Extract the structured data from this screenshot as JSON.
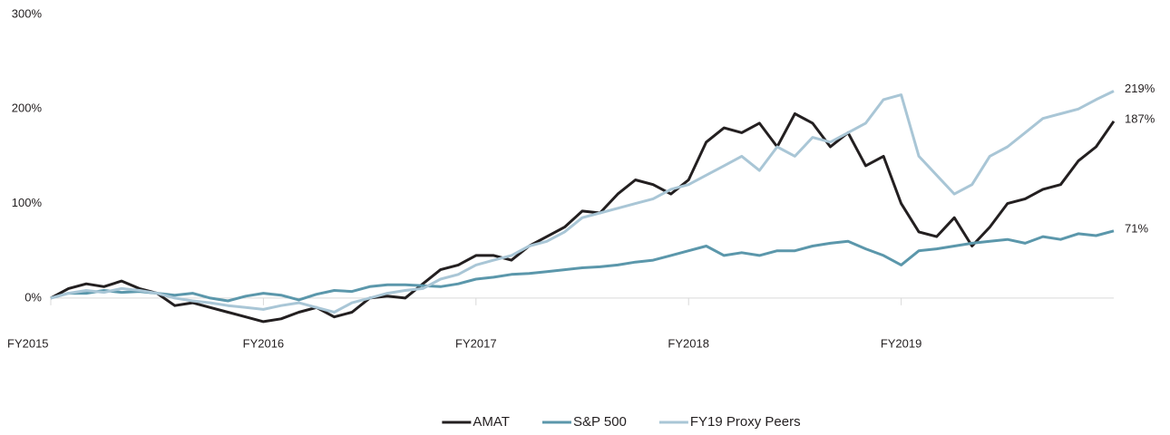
{
  "chart_data": {
    "type": "line",
    "x": [
      2015,
      2015.083,
      2015.167,
      2015.25,
      2015.333,
      2015.417,
      2015.5,
      2015.583,
      2015.667,
      2015.75,
      2015.833,
      2015.917,
      2016,
      2016.083,
      2016.167,
      2016.25,
      2016.333,
      2016.417,
      2016.5,
      2016.583,
      2016.667,
      2016.75,
      2016.833,
      2016.917,
      2017,
      2017.083,
      2017.167,
      2017.25,
      2017.333,
      2017.417,
      2017.5,
      2017.583,
      2017.667,
      2017.75,
      2017.833,
      2017.917,
      2018,
      2018.083,
      2018.167,
      2018.25,
      2018.333,
      2018.417,
      2018.5,
      2018.583,
      2018.667,
      2018.75,
      2018.833,
      2018.917,
      2019,
      2019.083,
      2019.167,
      2019.25,
      2019.333,
      2019.417,
      2019.5,
      2019.583,
      2019.667,
      2019.75,
      2019.833,
      2019.917,
      2020
    ],
    "series": [
      {
        "name": "AMAT",
        "color": "#231f20",
        "values": [
          0,
          10,
          15,
          12,
          18,
          10,
          5,
          -8,
          -5,
          -10,
          -15,
          -20,
          -25,
          -22,
          -15,
          -10,
          -20,
          -15,
          0,
          2,
          0,
          15,
          30,
          35,
          45,
          45,
          40,
          55,
          65,
          75,
          92,
          90,
          110,
          125,
          120,
          110,
          125,
          165,
          180,
          175,
          185,
          160,
          195,
          185,
          160,
          175,
          140,
          150,
          100,
          70,
          65,
          85,
          55,
          75,
          100,
          105,
          115,
          120,
          145,
          160,
          187
        ],
        "value_labels": [
          null,
          null,
          null,
          null,
          null,
          null,
          null,
          null,
          null,
          null,
          null,
          null,
          null,
          null,
          null,
          null,
          null,
          null,
          null,
          null,
          null,
          null,
          null,
          null,
          null,
          null,
          null,
          null,
          null,
          null,
          null,
          null,
          null,
          null,
          null,
          null,
          null,
          null,
          null,
          null,
          null,
          null,
          null,
          null,
          null,
          null,
          null,
          null,
          null,
          null,
          null,
          null,
          null,
          null,
          null,
          null,
          null,
          null,
          null,
          null,
          "187%"
        ]
      },
      {
        "name": "S&P 500",
        "color": "#5b97ab",
        "values": [
          0,
          5,
          5,
          8,
          6,
          7,
          5,
          3,
          5,
          0,
          -3,
          2,
          5,
          3,
          -2,
          4,
          8,
          7,
          12,
          14,
          14,
          13,
          12,
          15,
          20,
          22,
          25,
          26,
          28,
          30,
          32,
          33,
          35,
          38,
          40,
          45,
          50,
          55,
          45,
          48,
          45,
          50,
          50,
          55,
          58,
          60,
          52,
          45,
          35,
          50,
          52,
          55,
          58,
          60,
          62,
          58,
          65,
          62,
          68,
          66,
          71
        ],
        "value_labels": [
          null,
          null,
          null,
          null,
          null,
          null,
          null,
          null,
          null,
          null,
          null,
          null,
          null,
          null,
          null,
          null,
          null,
          null,
          null,
          null,
          null,
          null,
          null,
          null,
          null,
          null,
          null,
          null,
          null,
          null,
          null,
          null,
          null,
          null,
          null,
          null,
          null,
          null,
          null,
          null,
          null,
          null,
          null,
          null,
          null,
          null,
          null,
          null,
          null,
          null,
          null,
          null,
          null,
          null,
          null,
          null,
          null,
          null,
          null,
          null,
          "71%"
        ]
      },
      {
        "name": "FY19 Proxy Peers",
        "color": "#a9c6d6",
        "values": [
          0,
          5,
          8,
          6,
          10,
          8,
          5,
          0,
          -3,
          -5,
          -8,
          -10,
          -12,
          -8,
          -5,
          -10,
          -15,
          -5,
          0,
          5,
          8,
          10,
          20,
          25,
          35,
          40,
          45,
          55,
          60,
          70,
          85,
          90,
          95,
          100,
          105,
          115,
          120,
          130,
          140,
          150,
          135,
          160,
          150,
          170,
          165,
          175,
          185,
          210,
          215,
          150,
          130,
          110,
          120,
          150,
          160,
          175,
          190,
          195,
          200,
          210,
          219
        ],
        "value_labels": [
          null,
          null,
          null,
          null,
          null,
          null,
          null,
          null,
          null,
          null,
          null,
          null,
          null,
          null,
          null,
          null,
          null,
          null,
          null,
          null,
          null,
          null,
          null,
          null,
          null,
          null,
          null,
          null,
          null,
          null,
          null,
          null,
          null,
          null,
          null,
          null,
          null,
          null,
          null,
          null,
          null,
          null,
          null,
          null,
          null,
          null,
          null,
          null,
          null,
          null,
          null,
          null,
          null,
          null,
          null,
          null,
          null,
          null,
          null,
          null,
          "219%"
        ]
      }
    ],
    "xlim": [
      2015,
      2020
    ],
    "xticks": [
      {
        "value": 2015,
        "label": "FY2015"
      },
      {
        "value": 2016,
        "label": "FY2016"
      },
      {
        "value": 2017,
        "label": "FY2017"
      },
      {
        "value": 2018,
        "label": "FY2018"
      },
      {
        "value": 2019,
        "label": "FY2019"
      }
    ],
    "ylim": [
      -50,
      300
    ],
    "yticks": [
      {
        "value": 0,
        "label": "0%"
      },
      {
        "value": 100,
        "label": "100%"
      },
      {
        "value": 200,
        "label": "200%"
      },
      {
        "value": 300,
        "label": "300%"
      }
    ],
    "grid": false,
    "legend": "bottom"
  }
}
